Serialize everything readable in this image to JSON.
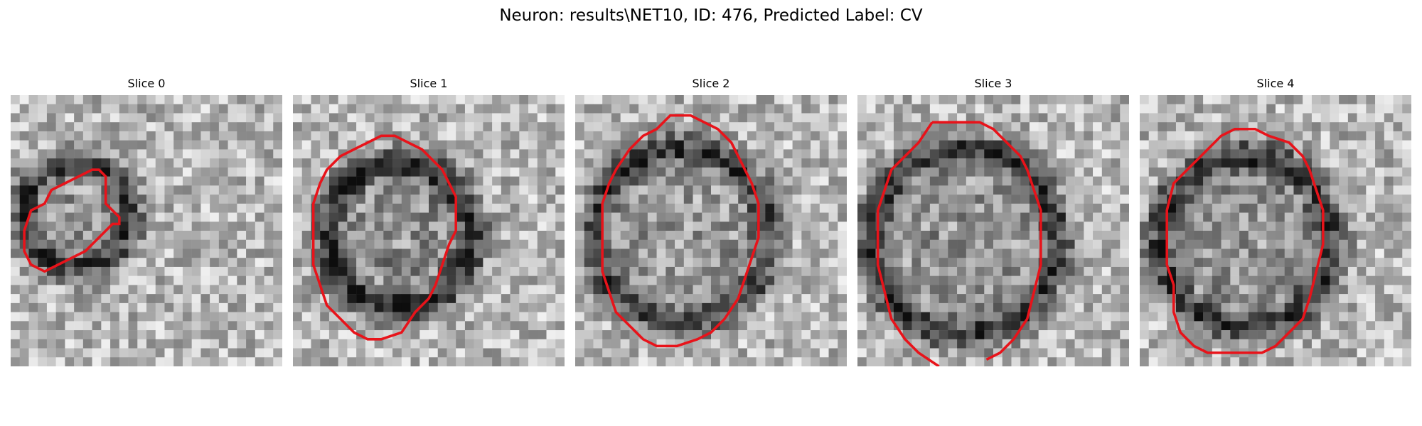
{
  "figure": {
    "title": "Neuron: results\\NET10, ID: 476, Predicted Label: CV"
  },
  "panels": [
    {
      "title": "Slice 0",
      "contour": [
        [
          13,
          11
        ],
        [
          14,
          12
        ],
        [
          14,
          16
        ],
        [
          16,
          18
        ],
        [
          16,
          19
        ],
        [
          15,
          19
        ],
        [
          12,
          22
        ],
        [
          11,
          23
        ],
        [
          7,
          25
        ],
        [
          5,
          26
        ],
        [
          3,
          25
        ],
        [
          2,
          23
        ],
        [
          2,
          20
        ],
        [
          3,
          17
        ],
        [
          5,
          16
        ],
        [
          6,
          14
        ],
        [
          8,
          13
        ],
        [
          10,
          12
        ],
        [
          12,
          11
        ]
      ],
      "texture": {
        "cx": 9,
        "cy": 17,
        "r": 8,
        "darkness": 0.35
      }
    },
    {
      "title": "Slice 1",
      "contour": [
        [
          13,
          6
        ],
        [
          15,
          6
        ],
        [
          17,
          7
        ],
        [
          19,
          8
        ],
        [
          20,
          9
        ],
        [
          21,
          10
        ],
        [
          22,
          11
        ],
        [
          23,
          13
        ],
        [
          24,
          15
        ],
        [
          24,
          20
        ],
        [
          23,
          22
        ],
        [
          22,
          25
        ],
        [
          21,
          28
        ],
        [
          20,
          30
        ],
        [
          18,
          32
        ],
        [
          16,
          35
        ],
        [
          13,
          36
        ],
        [
          11,
          36
        ],
        [
          9,
          35
        ],
        [
          7,
          33
        ],
        [
          5,
          31
        ],
        [
          4,
          28
        ],
        [
          3,
          25
        ],
        [
          3,
          21
        ],
        [
          3,
          16
        ],
        [
          4,
          13
        ],
        [
          5,
          11
        ],
        [
          7,
          9
        ],
        [
          9,
          8
        ],
        [
          11,
          7
        ]
      ],
      "texture": {
        "cx": 15,
        "cy": 20,
        "r": 11,
        "darkness": 0.55
      }
    },
    {
      "title": "Slice 2",
      "contour": [
        [
          14,
          3
        ],
        [
          17,
          3
        ],
        [
          19,
          4
        ],
        [
          21,
          5
        ],
        [
          23,
          7
        ],
        [
          24,
          9
        ],
        [
          25,
          11
        ],
        [
          26,
          13
        ],
        [
          27,
          16
        ],
        [
          27,
          21
        ],
        [
          26,
          24
        ],
        [
          25,
          27
        ],
        [
          24,
          30
        ],
        [
          22,
          33
        ],
        [
          20,
          35
        ],
        [
          18,
          36
        ],
        [
          15,
          37
        ],
        [
          12,
          37
        ],
        [
          10,
          36
        ],
        [
          8,
          34
        ],
        [
          6,
          32
        ],
        [
          5,
          29
        ],
        [
          4,
          26
        ],
        [
          4,
          21
        ],
        [
          4,
          16
        ],
        [
          5,
          13
        ],
        [
          6,
          11
        ],
        [
          8,
          8
        ],
        [
          10,
          6
        ],
        [
          12,
          5
        ]
      ],
      "texture": {
        "cx": 15,
        "cy": 20,
        "r": 13,
        "darkness": 0.4
      }
    },
    {
      "title": "Slice 3",
      "contour": [
        [
          11,
          4
        ],
        [
          18,
          4
        ],
        [
          20,
          5
        ],
        [
          22,
          7
        ],
        [
          24,
          9
        ],
        [
          25,
          11
        ],
        [
          26,
          14
        ],
        [
          27,
          17
        ],
        [
          27,
          21
        ],
        [
          27,
          25
        ],
        [
          26,
          29
        ],
        [
          25,
          33
        ],
        [
          23,
          36
        ],
        [
          21,
          38
        ],
        [
          19,
          39
        ]
      ],
      "contour2": [
        [
          12,
          40
        ],
        [
          9,
          38
        ],
        [
          7,
          36
        ],
        [
          5,
          33
        ],
        [
          4,
          29
        ],
        [
          3,
          25
        ],
        [
          3,
          21
        ],
        [
          3,
          17
        ],
        [
          4,
          14
        ],
        [
          5,
          11
        ],
        [
          7,
          9
        ],
        [
          9,
          7
        ],
        [
          11,
          4
        ]
      ],
      "texture": {
        "cx": 15,
        "cy": 21,
        "r": 14,
        "darkness": 0.45
      }
    },
    {
      "title": "Slice 4",
      "contour": [
        [
          14,
          5
        ],
        [
          17,
          5
        ],
        [
          19,
          6
        ],
        [
          22,
          7
        ],
        [
          24,
          9
        ],
        [
          25,
          11
        ],
        [
          26,
          14
        ],
        [
          27,
          17
        ],
        [
          27,
          22
        ],
        [
          26,
          26
        ],
        [
          25,
          30
        ],
        [
          24,
          33
        ],
        [
          22,
          35
        ],
        [
          20,
          37
        ],
        [
          18,
          38
        ],
        [
          10,
          38
        ],
        [
          8,
          37
        ],
        [
          6,
          35
        ],
        [
          5,
          32
        ],
        [
          5,
          28
        ],
        [
          4,
          25
        ],
        [
          4,
          21
        ],
        [
          4,
          17
        ],
        [
          5,
          13
        ],
        [
          7,
          11
        ],
        [
          9,
          9
        ],
        [
          11,
          7
        ],
        [
          12,
          6
        ]
      ],
      "texture": {
        "cx": 15,
        "cy": 21,
        "r": 13,
        "darkness": 0.45
      }
    }
  ]
}
